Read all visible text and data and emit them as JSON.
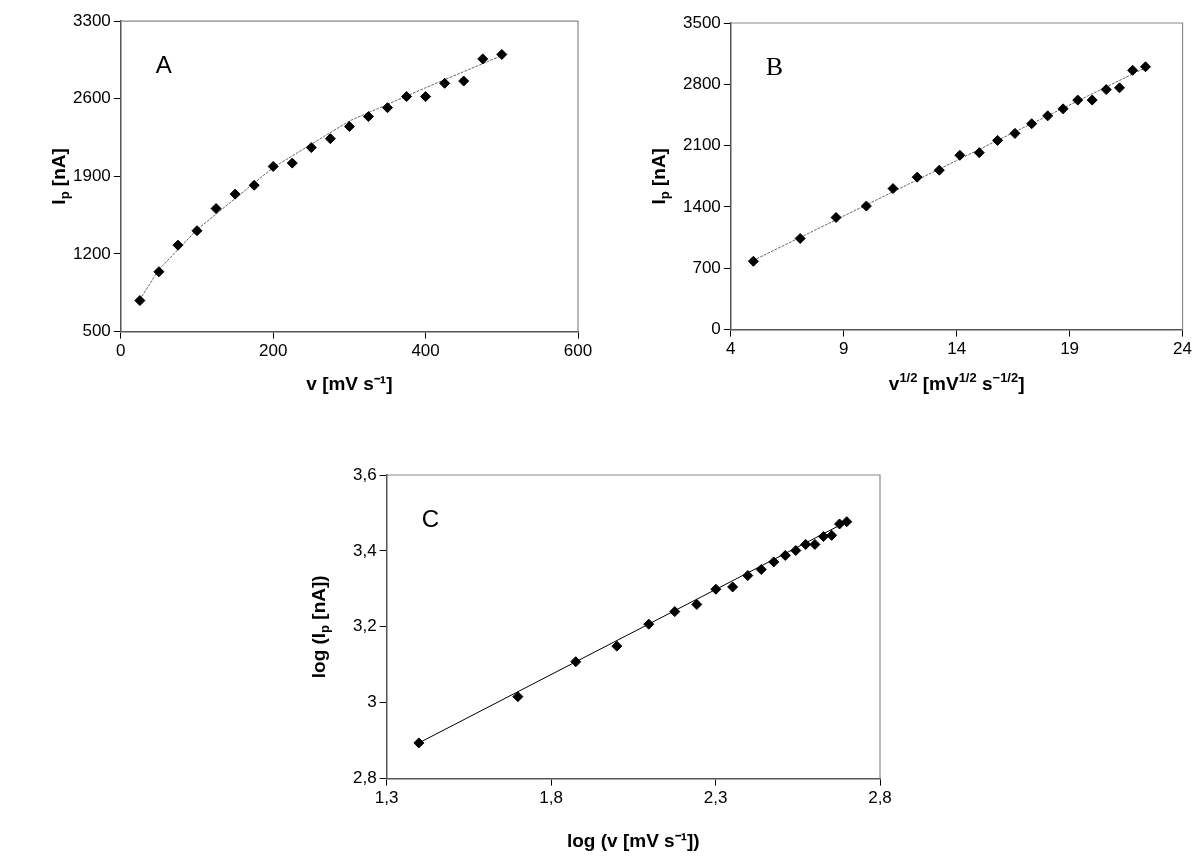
{
  "chart_data": [
    {
      "type": "scatter",
      "title": "A",
      "xlabel": "v [mV s⁻¹]",
      "ylabel": "I$_{p}$ [nA]",
      "marker": "diamond",
      "xlim": [
        0,
        600
      ],
      "xticks": [
        0,
        200,
        400,
        600
      ],
      "ylim": [
        500,
        3300
      ],
      "yticks": [
        500,
        1200,
        1900,
        2600,
        3300
      ],
      "series": [
        {
          "type": "scatter",
          "color": "#000000",
          "x": [
            25,
            50,
            75,
            100,
            125,
            150,
            175,
            200,
            225,
            250,
            275,
            300,
            325,
            350,
            375,
            400,
            425,
            450,
            475,
            500
          ],
          "values": [
            780,
            1040,
            1280,
            1410,
            1610,
            1740,
            1820,
            1990,
            2020,
            2160,
            2240,
            2350,
            2440,
            2520,
            2620,
            2620,
            2740,
            2760,
            2960,
            3000
          ]
        },
        {
          "type": "line",
          "color": "#666666",
          "line_style": "dotted",
          "marker": "none",
          "x": [
            25,
            50,
            100,
            200,
            300,
            400,
            500
          ],
          "values": [
            790,
            1060,
            1420,
            1980,
            2400,
            2700,
            2990
          ]
        }
      ]
    },
    {
      "type": "scatter",
      "title": "B",
      "xlabel": "v$^{1/2}$ [mV$^{1/2}$ s$^{−1/2}$]",
      "ylabel": "I$_{p}$ [nA]",
      "marker": "diamond",
      "xlim": [
        4,
        24
      ],
      "xticks": [
        4,
        9,
        14,
        19,
        24
      ],
      "ylim": [
        0,
        3500
      ],
      "yticks": [
        0,
        700,
        1400,
        2100,
        2800,
        3500
      ],
      "series": [
        {
          "type": "scatter",
          "color": "#000000",
          "x": [
            5,
            7.07,
            8.66,
            10,
            11.18,
            12.25,
            13.23,
            14.14,
            15,
            15.81,
            16.58,
            17.32,
            18.03,
            18.71,
            19.36,
            20,
            20.62,
            21.21,
            21.79,
            22.36
          ],
          "values": [
            780,
            1040,
            1280,
            1410,
            1610,
            1740,
            1820,
            1990,
            2020,
            2160,
            2240,
            2350,
            2440,
            2520,
            2620,
            2620,
            2740,
            2760,
            2960,
            3000
          ]
        },
        {
          "type": "line",
          "color": "#666666",
          "line_style": "dotted",
          "marker": "none",
          "x": [
            5,
            22.36
          ],
          "values": [
            790,
            2990
          ]
        }
      ]
    },
    {
      "type": "scatter",
      "title": "C",
      "xlabel": "log (v [mV s⁻¹])",
      "ylabel": "log (I$_{p}$ [nA])",
      "marker": "diamond",
      "xlim": [
        1.3,
        2.8
      ],
      "xticks": [
        {
          "value": 1.3,
          "label": "1,3"
        },
        {
          "value": 1.8,
          "label": "1,8"
        },
        {
          "value": 2.3,
          "label": "2,3"
        },
        {
          "value": 2.8,
          "label": "2,8"
        }
      ],
      "ylim": [
        2.8,
        3.6
      ],
      "yticks": [
        {
          "value": 2.8,
          "label": "2,8"
        },
        3,
        {
          "value": 3.2,
          "label": "3,2"
        },
        {
          "value": 3.4,
          "label": "3,4"
        },
        {
          "value": 3.6,
          "label": "3,6"
        }
      ],
      "series": [
        {
          "type": "scatter",
          "color": "#000000",
          "x": [
            1.398,
            1.699,
            1.875,
            2,
            2.097,
            2.176,
            2.243,
            2.301,
            2.352,
            2.398,
            2.439,
            2.477,
            2.512,
            2.544,
            2.574,
            2.602,
            2.628,
            2.653,
            2.677,
            2.699
          ],
          "values": [
            2.894,
            3.016,
            3.108,
            3.149,
            3.207,
            3.24,
            3.259,
            3.299,
            3.305,
            3.335,
            3.351,
            3.371,
            3.388,
            3.401,
            3.417,
            3.417,
            3.438,
            3.441,
            3.471,
            3.477
          ]
        },
        {
          "type": "line",
          "color": "#000000",
          "line_style": "solid",
          "marker": "none",
          "x": [
            1.398,
            2.699
          ],
          "values": [
            2.894,
            3.477
          ]
        }
      ]
    }
  ]
}
